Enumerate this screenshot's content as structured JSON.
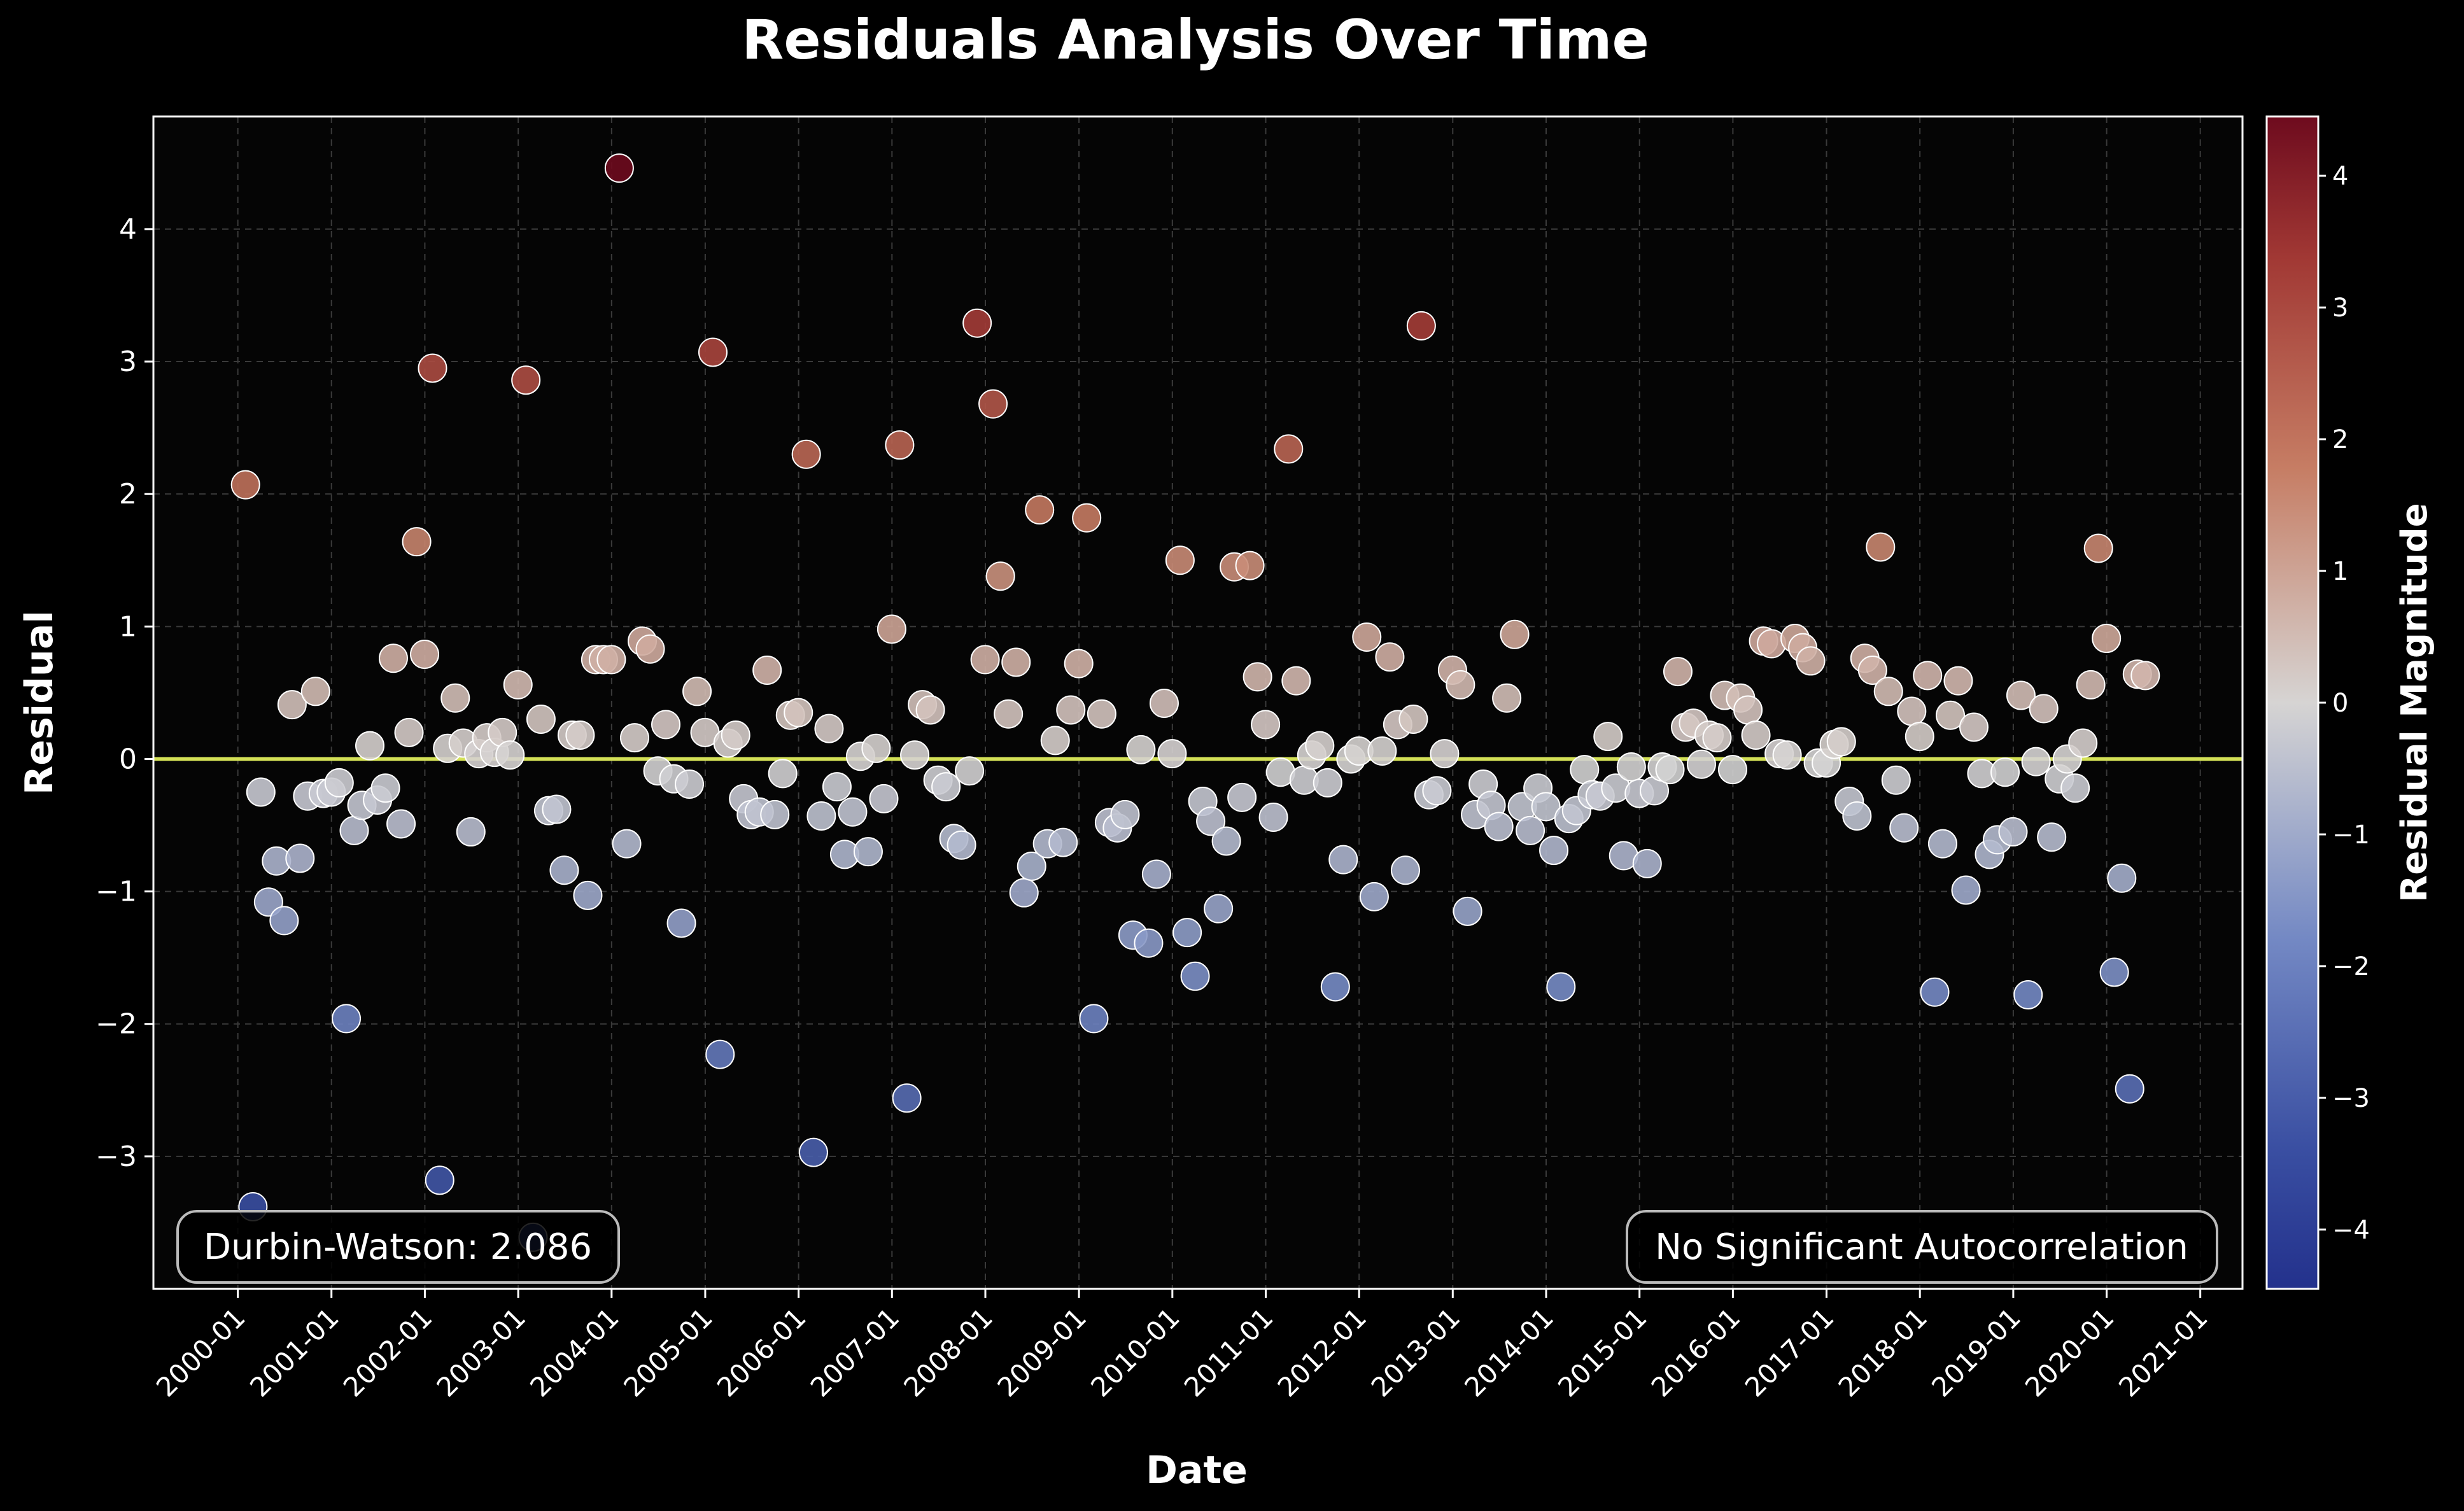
{
  "chart_data": {
    "type": "scatter",
    "title": "Residuals Analysis Over Time",
    "xlabel": "Date",
    "ylabel": "Residual",
    "colorbar_label": "Residual Magnitude",
    "xlim": [
      "1999-02-05",
      "2021-06-15"
    ],
    "ylim": [
      -4.0,
      4.85
    ],
    "x_ticks": [
      "2000-01",
      "2001-01",
      "2002-01",
      "2003-01",
      "2004-01",
      "2005-01",
      "2006-01",
      "2007-01",
      "2008-01",
      "2009-01",
      "2010-01",
      "2011-01",
      "2012-01",
      "2013-01",
      "2014-01",
      "2015-01",
      "2016-01",
      "2017-01",
      "2018-01",
      "2019-01",
      "2020-01",
      "2021-01"
    ],
    "y_ticks": [
      "−3",
      "−2",
      "−1",
      "0",
      "1",
      "2",
      "3",
      "4"
    ],
    "y_tick_values": [
      -3,
      -2,
      -1,
      0,
      1,
      2,
      3,
      4
    ],
    "colorbar_ticks": [
      "−4",
      "−3",
      "−2",
      "−1",
      "0",
      "1",
      "2",
      "3",
      "4"
    ],
    "colorbar_tick_values": [
      -4,
      -3,
      -2,
      -1,
      0,
      1,
      2,
      3,
      4
    ],
    "colorbar_range": [
      -4.45,
      4.45
    ],
    "colormap": "blue-white-red",
    "zero_line": 0,
    "zero_line_color": "#d4e157",
    "grid": true,
    "annotations": {
      "left": "Durbin-Watson: 2.086",
      "right": "No Significant Autocorrelation"
    },
    "start": "2000-01",
    "residuals": [
      2.07,
      -3.38,
      -0.25,
      -1.08,
      -0.77,
      -1.22,
      0.41,
      -0.75,
      -0.28,
      0.51,
      -0.26,
      -0.25,
      -0.18,
      -1.96,
      -0.54,
      -0.35,
      0.1,
      -0.31,
      -0.22,
      0.76,
      -0.49,
      0.2,
      1.64,
      0.79,
      2.95,
      -3.18,
      0.08,
      0.46,
      0.12,
      -0.55,
      0.04,
      0.16,
      0.05,
      0.2,
      0.03,
      0.56,
      2.86,
      -3.61,
      0.3,
      -0.39,
      -0.38,
      -0.84,
      0.18,
      0.18,
      -1.03,
      0.75,
      0.75,
      0.75,
      4.46,
      -0.64,
      0.16,
      0.89,
      0.83,
      -0.09,
      0.26,
      -0.15,
      -1.24,
      -0.19,
      0.51,
      0.2,
      3.07,
      -2.23,
      0.12,
      0.18,
      -0.3,
      -0.42,
      -0.4,
      0.67,
      -0.42,
      -0.11,
      0.33,
      0.35,
      2.3,
      -2.97,
      -0.43,
      0.23,
      -0.21,
      -0.72,
      -0.4,
      0.02,
      -0.7,
      0.08,
      -0.3,
      0.98,
      2.37,
      -2.56,
      0.03,
      0.41,
      0.37,
      -0.16,
      -0.21,
      -0.6,
      -0.65,
      -0.09,
      3.29,
      0.75,
      2.68,
      1.38,
      0.34,
      0.73,
      -1.01,
      -0.81,
      1.88,
      -0.64,
      0.14,
      -0.63,
      0.37,
      0.72,
      1.82,
      -1.96,
      0.34,
      -0.48,
      -0.52,
      -0.42,
      -1.33,
      0.07,
      -1.39,
      -0.87,
      0.42,
      0.04,
      1.5,
      -1.31,
      -1.64,
      -0.32,
      -0.47,
      -1.13,
      -0.62,
      1.45,
      -0.29,
      1.46,
      0.62,
      0.26,
      -0.44,
      -0.1,
      2.34,
      0.59,
      -0.16,
      0.03,
      0.1,
      -0.18,
      -1.72,
      -0.76,
      0.0,
      0.06,
      0.92,
      -1.04,
      0.06,
      0.77,
      0.26,
      -0.84,
      0.3,
      3.27,
      -0.27,
      -0.24,
      0.04,
      0.67,
      0.56,
      -1.15,
      -0.42,
      -0.19,
      -0.35,
      -0.51,
      0.46,
      0.94,
      -0.36,
      -0.54,
      -0.22,
      -0.36,
      -0.69,
      -1.72,
      -0.45,
      -0.39,
      -0.08,
      -0.27,
      -0.28,
      0.17,
      -0.22,
      -0.73,
      -0.06,
      -0.26,
      -0.79,
      -0.24,
      -0.06,
      -0.08,
      0.66,
      0.24,
      0.27,
      -0.04,
      0.18,
      0.16,
      0.48,
      -0.08,
      0.46,
      0.37,
      0.18,
      0.89,
      0.87,
      0.04,
      0.03,
      0.91,
      0.84,
      0.74,
      -0.03,
      -0.03,
      0.11,
      0.13,
      -0.32,
      -0.43,
      0.76,
      0.67,
      1.6,
      0.51,
      -0.16,
      -0.52,
      0.36,
      0.17,
      0.63,
      -1.76,
      -0.64,
      0.33,
      0.59,
      -0.99,
      0.24,
      -0.11,
      -0.72,
      -0.61,
      -0.1,
      -0.55,
      0.48,
      -1.78,
      -0.02,
      0.38,
      -0.59,
      -0.15,
      0.0,
      -0.22,
      0.12,
      0.56,
      1.59,
      0.91,
      -1.61,
      -0.9,
      -2.49,
      0.64,
      0.63
    ]
  }
}
